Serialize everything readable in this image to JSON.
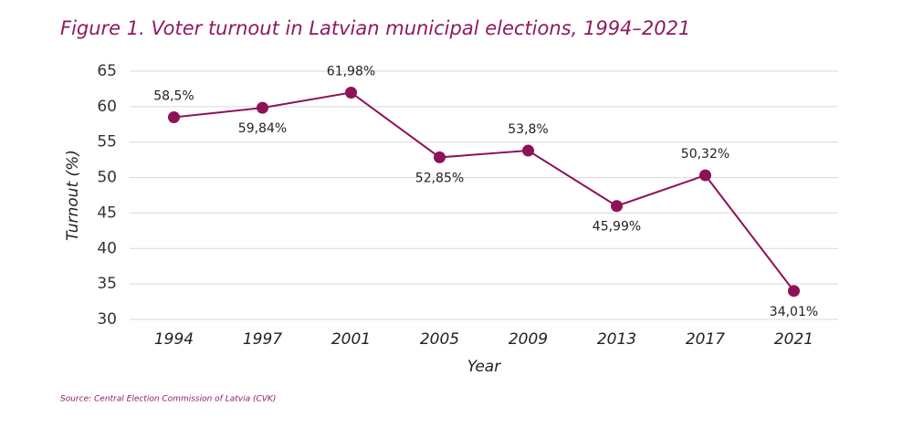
{
  "chart_data": {
    "type": "line",
    "title": "Figure 1. Voter turnout in Latvian municipal elections, 1994–2021",
    "source": "Source: Central Election Commission of Latvia (CVK)",
    "xlabel": "Year",
    "ylabel": "Turnout (%)",
    "categories": [
      "1994",
      "1997",
      "2001",
      "2005",
      "2009",
      "2013",
      "2017",
      "2021"
    ],
    "values": [
      58.5,
      59.84,
      61.98,
      52.85,
      53.8,
      45.99,
      50.32,
      34.01
    ],
    "value_labels": [
      "58,5%",
      "59,84%",
      "61,98%",
      "52,85%",
      "53,8%",
      "45,99%",
      "50,32%",
      "34,01%"
    ],
    "color": "#8e1257",
    "ylim": [
      30,
      65
    ],
    "yticks": [
      30,
      35,
      40,
      45,
      50,
      55,
      60,
      65
    ],
    "grid": true
  }
}
